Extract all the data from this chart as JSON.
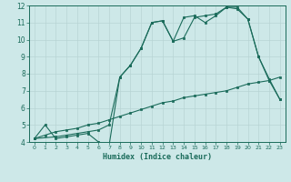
{
  "xlabel": "Humidex (Indice chaleur)",
  "bg_color": "#cde8e8",
  "grid_color": "#b8d4d4",
  "line_color": "#1a6b5a",
  "xlim": [
    -0.5,
    23.5
  ],
  "ylim": [
    4,
    12
  ],
  "xticks": [
    0,
    1,
    2,
    3,
    4,
    5,
    6,
    7,
    8,
    9,
    10,
    11,
    12,
    13,
    14,
    15,
    16,
    17,
    18,
    19,
    20,
    21,
    22,
    23
  ],
  "yticks": [
    4,
    5,
    6,
    7,
    8,
    9,
    10,
    11,
    12
  ],
  "line1_x": [
    0,
    1,
    2,
    3,
    4,
    5,
    6,
    7,
    8,
    9,
    10,
    11,
    12,
    13,
    14,
    15,
    16,
    17,
    18,
    19,
    20,
    21,
    22,
    23
  ],
  "line1_y": [
    4.2,
    5.0,
    4.2,
    4.3,
    4.4,
    4.5,
    4.0,
    3.8,
    7.8,
    8.5,
    9.5,
    11.0,
    11.1,
    9.9,
    11.3,
    11.4,
    11.0,
    11.4,
    11.9,
    11.8,
    11.2,
    9.0,
    7.6,
    6.5
  ],
  "line2_x": [
    0,
    1,
    2,
    3,
    4,
    5,
    6,
    7,
    8,
    9,
    10,
    11,
    12,
    13,
    14,
    15,
    16,
    17,
    18,
    19,
    20,
    21,
    22,
    23
  ],
  "line2_y": [
    4.2,
    4.4,
    4.6,
    4.7,
    4.8,
    5.0,
    5.1,
    5.3,
    5.5,
    5.7,
    5.9,
    6.1,
    6.3,
    6.4,
    6.6,
    6.7,
    6.8,
    6.9,
    7.0,
    7.2,
    7.4,
    7.5,
    7.6,
    7.8
  ],
  "line3_x": [
    0,
    2,
    3,
    4,
    5,
    6,
    7,
    8,
    9,
    10,
    11,
    12,
    13,
    14,
    15,
    16,
    17,
    18,
    19,
    20,
    21,
    22,
    23
  ],
  "line3_y": [
    4.2,
    4.3,
    4.4,
    4.5,
    4.6,
    4.7,
    5.0,
    7.8,
    8.5,
    9.5,
    11.0,
    11.1,
    9.9,
    10.1,
    11.3,
    11.4,
    11.5,
    11.9,
    11.9,
    11.2,
    9.0,
    7.7,
    6.5
  ]
}
